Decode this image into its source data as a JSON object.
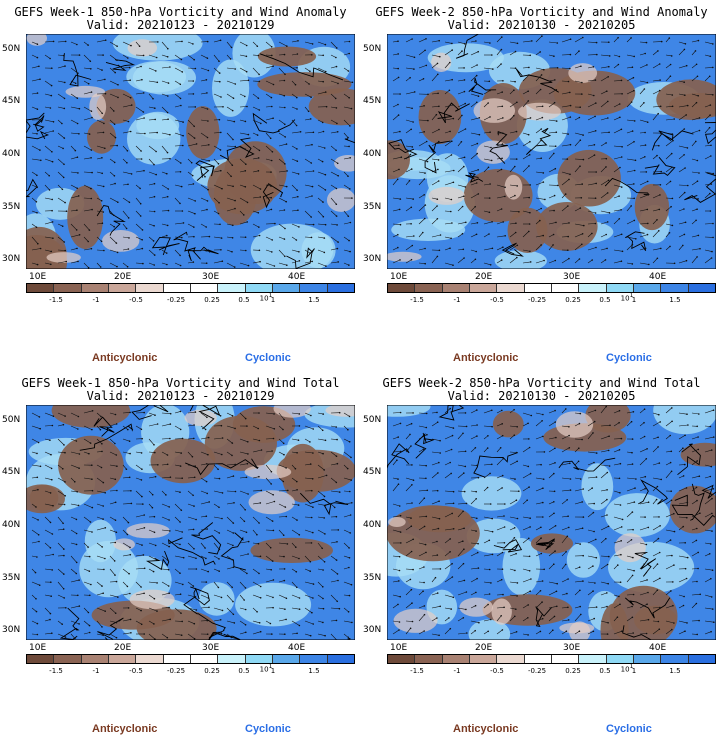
{
  "panels": [
    {
      "title_line1": "GEFS Week-1 850-hPa Vorticity and Wind Anomaly",
      "title_line2": "Valid: 20210123 - 20210129"
    },
    {
      "title_line1": "GEFS Week-2 850-hPa Vorticity and Wind Anomaly",
      "title_line2": "Valid: 20210130 - 20210205"
    },
    {
      "title_line1": "GEFS Week-1 850-hPa Vorticity and Wind Total",
      "title_line2": "Valid: 20210123 - 20210129"
    },
    {
      "title_line1": "GEFS Week-2 850-hPa Vorticity and Wind Total",
      "title_line2": "Valid: 20210130 - 20210205"
    }
  ],
  "lat_labels": [
    "50N",
    "45N",
    "40N",
    "35N",
    "30N"
  ],
  "lon_labels": [
    "10E",
    "20E",
    "30E",
    "40E"
  ],
  "colorbar": {
    "colors": [
      "#6e4a3a",
      "#8a6353",
      "#a98273",
      "#caa79a",
      "#ebd9d1",
      "#ffffff",
      "#ffffff",
      "#c9f2fb",
      "#8fd9f5",
      "#5aa8ea",
      "#3d85e6",
      "#2a6fe0"
    ],
    "tick_labels": [
      "-1.5",
      "-1",
      "-0.5",
      "-0.25",
      "0.25",
      "0.5",
      "1",
      "1.5"
    ],
    "scale_label": "10",
    "scale_exp": "1"
  },
  "legend": {
    "anticyclonic": "Anticyclonic",
    "cyclonic": "Cyclonic"
  },
  "colors": {
    "anticyclonic_text": "#7a3a22",
    "cyclonic_text": "#2a6ee6",
    "brown": "#86614f",
    "blue": "#3f86e6"
  }
}
